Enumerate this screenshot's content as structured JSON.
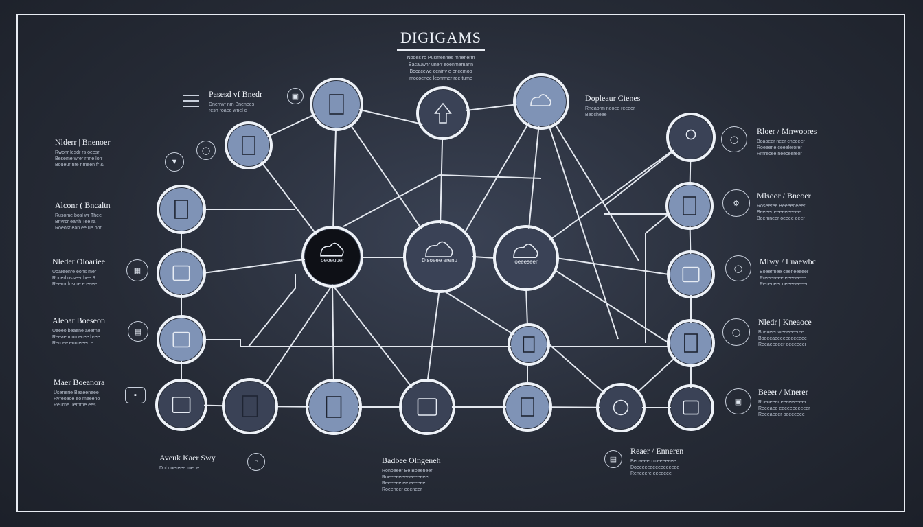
{
  "title": "DIGIGAMS",
  "title_sublines": [
    "Nodes ro Pusmennes mnenerm",
    "Bacauwhr unerr eoenmemann",
    "Bocacewe ceninv e encemoo",
    "mocoenee leonrmer ree tume"
  ],
  "labels": {
    "top_left": {
      "heading": "Pasesd vf Bnedr",
      "lines": [
        "Dnerrwr nm Bnenees",
        "resh roaee wnel c"
      ]
    },
    "top_right": {
      "heading": "Dopleaur Cienes",
      "lines": [
        "Rneaorm neoee reeeor",
        "Beocheee"
      ]
    },
    "left_1": {
      "heading": "Nlderr | Bnenoer",
      "lines": [
        "Rwonr lesdr rs oeesr",
        "Beseme wrer rnne lorr",
        "Boueur nre nmeen fr &"
      ]
    },
    "left_2": {
      "heading": "Alconr ( Bncaltn",
      "lines": [
        "Rusome bosl wr Thee",
        "Bnvrcr earth Tee ra",
        "Roeosr ean ee ue oor"
      ]
    },
    "left_3": {
      "heading": "Nleder Oloariee",
      "lines": [
        "Uoareenre eons mer",
        "Rocerl osseer hee 8",
        "Reemr losme e eeee"
      ]
    },
    "left_4": {
      "heading": "Aleoar Boeseon",
      "lines": [
        "Ueeeo beaene aeerne",
        "Reeae mnmecee h-ee",
        "Reroee enn eeen e"
      ]
    },
    "left_5": {
      "heading": "Maer Boeanora",
      "lines": [
        "Usenerie Beaeeneee",
        "Rvreoaoe eo meeeno",
        "Reurne uemme ees"
      ]
    },
    "right_1": {
      "heading": "Rloer / Mnwoores",
      "lines": [
        "Boaoeer neer cneeeer",
        "Roeeene ceeelerorer",
        "Rmrecee neeceereor"
      ]
    },
    "right_2": {
      "heading": "Mlsoor / Bneoer",
      "lines": [
        "Roseeree Beeeeoeeer",
        "Beeeerreeeeeeeeee",
        "Beemneer oeeee eeer"
      ]
    },
    "right_3": {
      "heading": "Mlwy / Lnaewbc",
      "lines": [
        "Boeermee ceeneeeeer",
        "Rreeeaeee eeeeeeee",
        "Reneoeer oeeeeeeeer"
      ]
    },
    "right_4": {
      "heading": "Nledr | Kneaoce",
      "lines": [
        "Boeueer weeeeeeree",
        "Boeeeaeeeeeeeeeeee",
        "Reeaeeeeer oeeeeeer"
      ]
    },
    "right_5": {
      "heading": "Beeer / Mnerer",
      "lines": [
        "Roeoeeer eeeeeeeeer",
        "Reeeaee eeeeeeeeeeer",
        "Reeeaeeer oeeeeeee"
      ]
    },
    "bottom_left": {
      "heading": "Aveuk Kaer Swy",
      "lines": [
        "Dol ouereee mer e"
      ]
    },
    "bottom_center": {
      "heading": "Badbee Olngeneh",
      "lines": [
        "Ronoeeer Be Boeeneer",
        "Roeeeeeeeeeeeeeeer",
        "Reeeeee ee eeeeee",
        "Roeeneer eeeneer"
      ]
    },
    "bottom_right": {
      "heading": "Reaer / Enneren",
      "lines": [
        "Becaeeec meeeeeee",
        "Doeeeeeeeeeeeeeeee",
        "Reneeere eeeeeee"
      ]
    }
  },
  "node_labels": {
    "center_left": "oeoeuuer",
    "center": "Disoeee erenu",
    "center_right": "oeeeseer"
  },
  "colors": {
    "background": "#262b36",
    "node_fill": "#7f93b6",
    "node_dark": "#3a4256",
    "node_black": "#0e1016",
    "ring": "#eef2f8",
    "edge": "#e4e8ef"
  }
}
